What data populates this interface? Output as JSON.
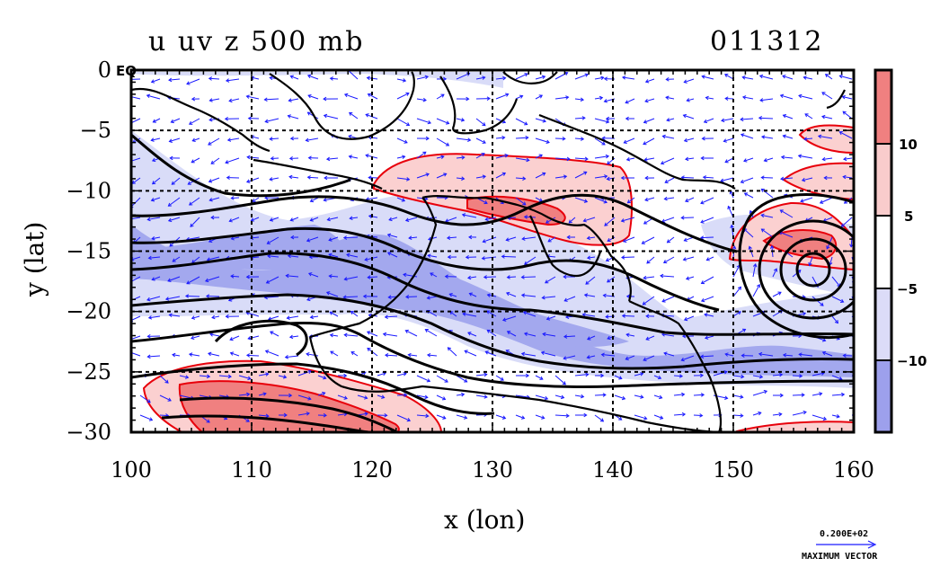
{
  "chart_data": {
    "type": "contour-map",
    "title": "u uv z 500 mb",
    "timestamp": "011312",
    "xlabel": "x (lon)",
    "ylabel": "y (lat)",
    "xlim": [
      100,
      160
    ],
    "ylim": [
      -30,
      0
    ],
    "xticks": [
      100,
      110,
      120,
      130,
      140,
      150,
      160
    ],
    "yticks": [
      0,
      -5,
      -10,
      -15,
      -20,
      -25,
      -30
    ],
    "ytick_labels": [
      "0",
      "−5",
      "−10",
      "−15",
      "−20",
      "−25",
      "−30"
    ],
    "corner_label": "EQ",
    "grid": true,
    "colorbar": {
      "levels": [
        "10",
        "5",
        "−5",
        "−10"
      ],
      "colors": [
        "#f08080",
        "#f9cccc",
        "#ffffff",
        "#dcdcf8",
        "#9da0ec"
      ]
    },
    "vector_reference": {
      "value": "0.200E+02",
      "caption": "MAXIMUM VECTOR"
    },
    "colors": {
      "positive_fill_strong": "#f08080",
      "positive_fill_weak": "#fbd0d0",
      "negative_fill_strong": "#a3a8ee",
      "negative_fill_weak": "#d9dcf8",
      "positive_contour": "#e8000b",
      "vectors": "#1a1aff",
      "coastline": "#000000",
      "height_contour": "#000000"
    }
  }
}
